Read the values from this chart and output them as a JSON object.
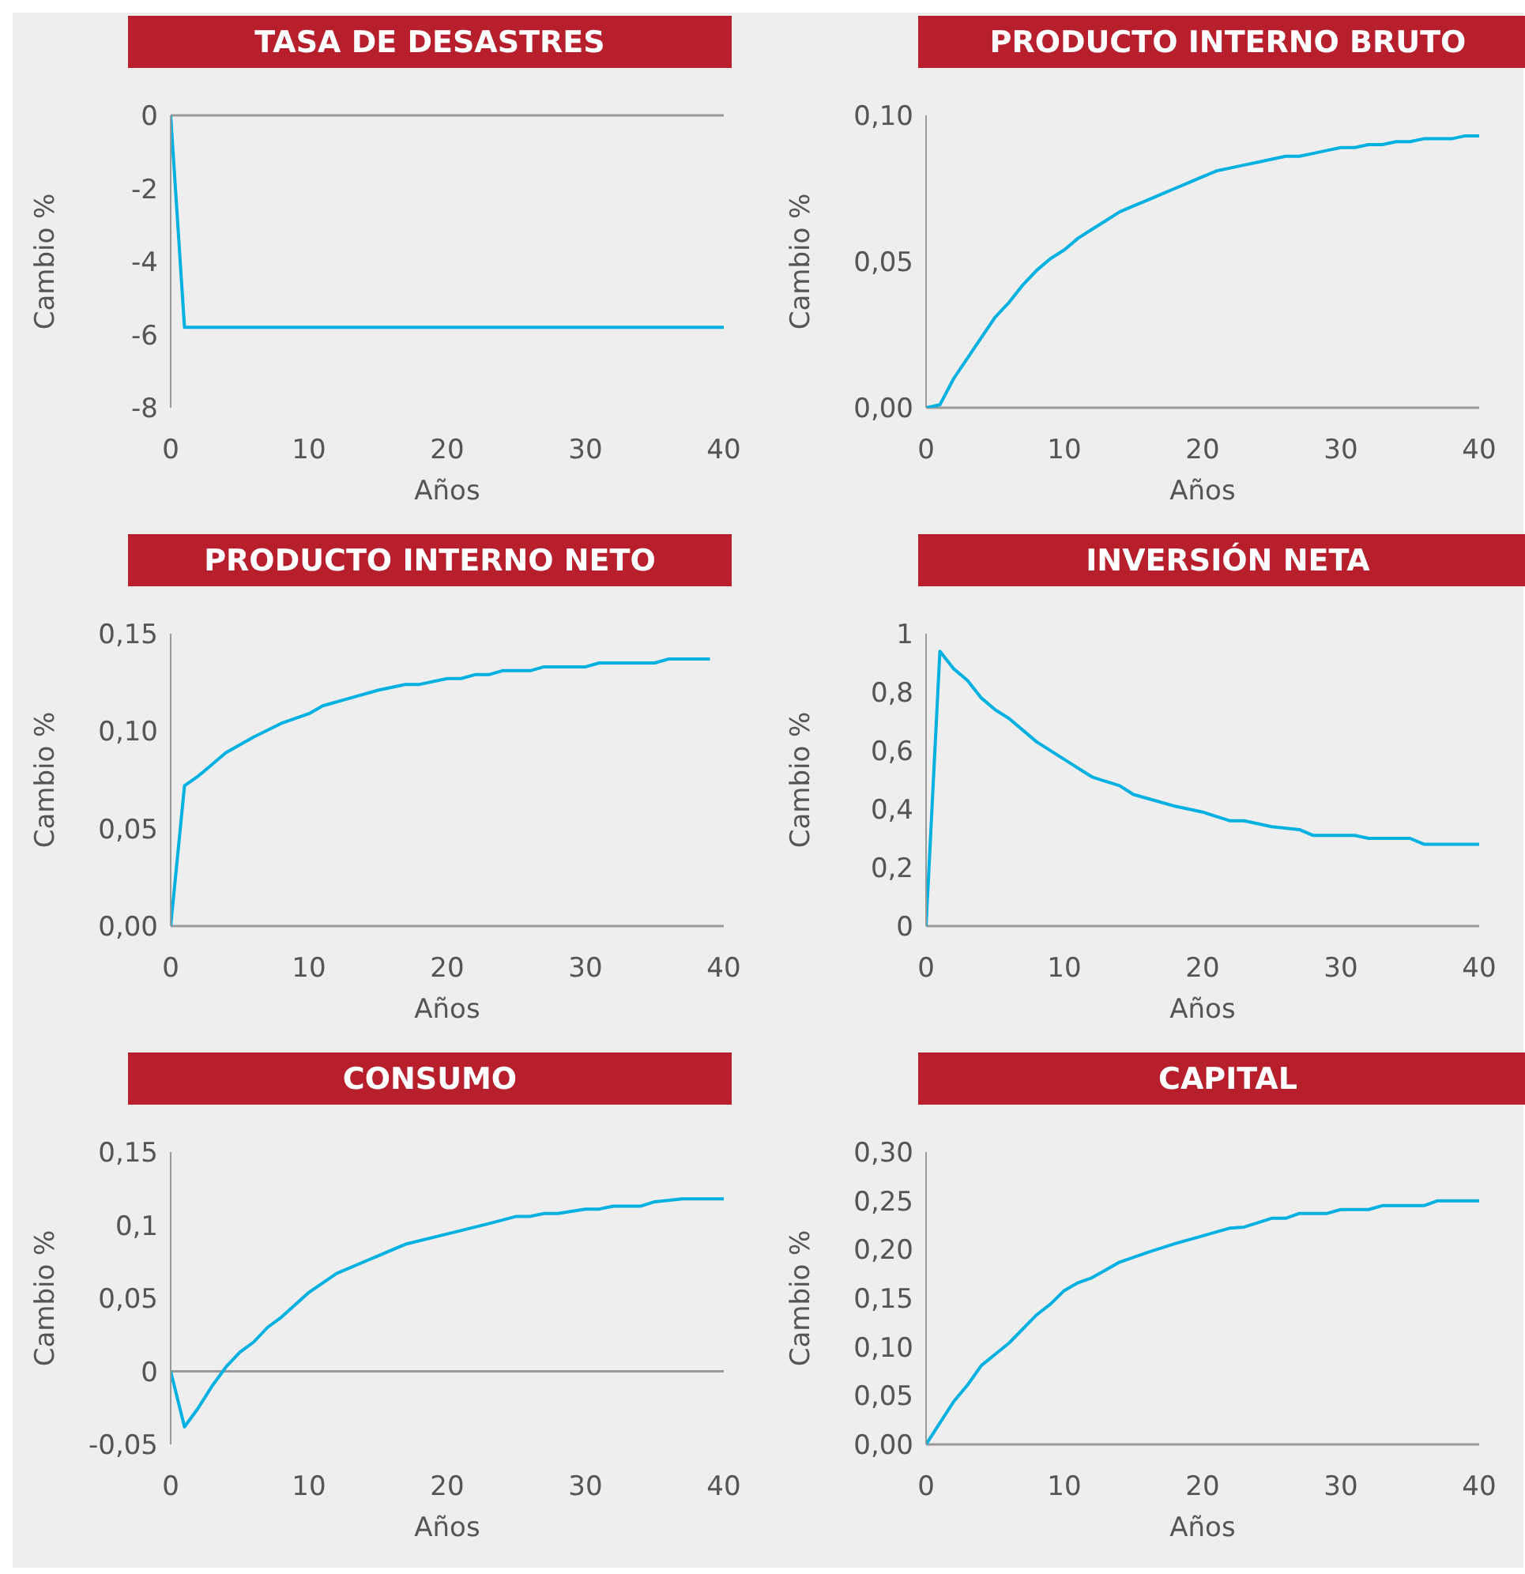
{
  "chart_data": [
    {
      "type": "line",
      "title": "TASA DE DESASTRES",
      "xlabel": "Años",
      "ylabel": "Cambio %",
      "marker": "none",
      "xlim": [
        0,
        40
      ],
      "xticks": [
        0,
        10,
        20,
        30,
        40
      ],
      "ylim": [
        -8,
        0
      ],
      "yticks": [
        -8,
        -6,
        -4,
        -2,
        0
      ],
      "x": [
        0,
        1,
        5,
        10,
        15,
        20,
        25,
        30,
        35,
        40
      ],
      "series": [
        {
          "color": "#00b0e0",
          "values": [
            0,
            -5.8,
            -5.8,
            -5.8,
            -5.8,
            -5.8,
            -5.8,
            -5.8,
            -5.8,
            -5.8
          ]
        }
      ]
    },
    {
      "type": "line",
      "title": "PRODUCTO INTERNO BRUTO",
      "xlabel": "Años",
      "ylabel": "Cambio %",
      "marker": "none",
      "xlim": [
        0,
        40
      ],
      "xticks": [
        0,
        10,
        20,
        30,
        40
      ],
      "ylim": [
        0,
        0.1
      ],
      "yticks": [
        {
          "value": 0,
          "label": "0,00"
        },
        {
          "value": 0.05,
          "label": "0,05"
        },
        {
          "value": 0.1,
          "label": "0,10"
        }
      ],
      "x": [
        0,
        1,
        2,
        3,
        4,
        5,
        6,
        7,
        8,
        9,
        10,
        11,
        12,
        13,
        14,
        15,
        16,
        17,
        18,
        19,
        20,
        21,
        22,
        23,
        24,
        25,
        26,
        27,
        28,
        29,
        30,
        31,
        32,
        33,
        34,
        35,
        36,
        37,
        38,
        39,
        40
      ],
      "series": [
        {
          "color": "#00b0e0",
          "values": [
            0,
            0.001,
            0.01,
            0.017,
            0.024,
            0.031,
            0.036,
            0.042,
            0.047,
            0.051,
            0.054,
            0.058,
            0.061,
            0.064,
            0.067,
            0.069,
            0.071,
            0.073,
            0.075,
            0.077,
            0.079,
            0.081,
            0.082,
            0.083,
            0.084,
            0.085,
            0.086,
            0.086,
            0.087,
            0.088,
            0.089,
            0.089,
            0.09,
            0.09,
            0.091,
            0.091,
            0.092,
            0.092,
            0.092,
            0.093,
            0.093
          ]
        }
      ]
    },
    {
      "type": "line",
      "title": "PRODUCTO INTERNO NETO",
      "xlabel": "Años",
      "ylabel": "Cambio %",
      "marker": "none",
      "xlim": [
        0,
        40
      ],
      "xticks": [
        0,
        10,
        20,
        30,
        40
      ],
      "ylim": [
        0,
        0.15
      ],
      "yticks": [
        {
          "value": 0,
          "label": "0,00"
        },
        {
          "value": 0.05,
          "label": "0,05"
        },
        {
          "value": 0.1,
          "label": "0,10"
        },
        {
          "value": 0.15,
          "label": "0,15"
        }
      ],
      "x": [
        0,
        1,
        2,
        4,
        6,
        8,
        10,
        11,
        13,
        15,
        17,
        18,
        20,
        21,
        22,
        23,
        24,
        26,
        27,
        30,
        31,
        35,
        36,
        39
      ],
      "series": [
        {
          "color": "#00b0e0",
          "values": [
            0,
            0.072,
            0.077,
            0.089,
            0.097,
            0.104,
            0.109,
            0.113,
            0.117,
            0.121,
            0.124,
            0.124,
            0.127,
            0.127,
            0.129,
            0.129,
            0.131,
            0.131,
            0.133,
            0.133,
            0.135,
            0.135,
            0.137,
            0.137
          ]
        }
      ]
    },
    {
      "type": "line",
      "title": "INVERSIÓN NETA",
      "xlabel": "Años",
      "ylabel": "Cambio %",
      "marker": "none",
      "xlim": [
        0,
        40
      ],
      "xticks": [
        0,
        10,
        20,
        30,
        40
      ],
      "ylim": [
        0,
        1
      ],
      "yticks": [
        0,
        {
          "value": 0.2,
          "label": "0,2"
        },
        {
          "value": 0.4,
          "label": "0,4"
        },
        {
          "value": 0.6,
          "label": "0,6"
        },
        {
          "value": 0.8,
          "label": "0,8"
        },
        1
      ],
      "x": [
        0,
        1,
        2,
        3,
        4,
        5,
        6,
        7,
        8,
        10,
        12,
        14,
        15,
        18,
        20,
        22,
        23,
        25,
        27,
        28,
        31,
        32,
        35,
        36,
        40
      ],
      "series": [
        {
          "color": "#00b0e0",
          "values": [
            0,
            0.94,
            0.88,
            0.84,
            0.78,
            0.74,
            0.71,
            0.67,
            0.63,
            0.57,
            0.51,
            0.48,
            0.45,
            0.41,
            0.39,
            0.36,
            0.36,
            0.34,
            0.33,
            0.31,
            0.31,
            0.3,
            0.3,
            0.28,
            0.28
          ]
        }
      ]
    },
    {
      "type": "line",
      "title": "CONSUMO",
      "xlabel": "Años",
      "ylabel": "Cambio %",
      "marker": "none",
      "xlim": [
        0,
        40
      ],
      "xticks": [
        0,
        10,
        20,
        30,
        40
      ],
      "ylim": [
        -0.05,
        0.15
      ],
      "yticks": [
        {
          "value": -0.05,
          "label": "-0,05"
        },
        0,
        {
          "value": 0.05,
          "label": "0,05"
        },
        {
          "value": 0.1,
          "label": "0,1"
        },
        {
          "value": 0.15,
          "label": "0,15"
        }
      ],
      "x": [
        0,
        1,
        2,
        3,
        4,
        5,
        6,
        7,
        8,
        10,
        12,
        14,
        15,
        17,
        20,
        23,
        25,
        26,
        27,
        28,
        30,
        31,
        32,
        34,
        35,
        37,
        40
      ],
      "series": [
        {
          "color": "#00b0e0",
          "values": [
            0,
            -0.038,
            -0.025,
            -0.01,
            0.003,
            0.013,
            0.02,
            0.03,
            0.037,
            0.054,
            0.067,
            0.075,
            0.079,
            0.087,
            0.094,
            0.101,
            0.106,
            0.106,
            0.108,
            0.108,
            0.111,
            0.111,
            0.113,
            0.113,
            0.116,
            0.118,
            0.118
          ]
        }
      ]
    },
    {
      "type": "line",
      "title": "CAPITAL",
      "xlabel": "Años",
      "ylabel": "Cambio %",
      "marker": "none",
      "xlim": [
        0,
        40
      ],
      "xticks": [
        0,
        10,
        20,
        30,
        40
      ],
      "ylim": [
        0,
        0.3
      ],
      "yticks": [
        {
          "value": 0,
          "label": "0,00"
        },
        {
          "value": 0.05,
          "label": "0,05"
        },
        {
          "value": 0.1,
          "label": "0,10"
        },
        {
          "value": 0.15,
          "label": "0,15"
        },
        {
          "value": 0.2,
          "label": "0,20"
        },
        {
          "value": 0.25,
          "label": "0,25"
        },
        {
          "value": 0.3,
          "label": "0,30"
        }
      ],
      "x": [
        0,
        2,
        3,
        4,
        6,
        8,
        9,
        10,
        11,
        12,
        14,
        16,
        18,
        20,
        22,
        23,
        25,
        26,
        27,
        29,
        30,
        32,
        33,
        36,
        37,
        40
      ],
      "series": [
        {
          "color": "#00b0e0",
          "values": [
            0,
            0.044,
            0.061,
            0.081,
            0.104,
            0.133,
            0.144,
            0.158,
            0.166,
            0.171,
            0.187,
            0.197,
            0.206,
            0.214,
            0.222,
            0.223,
            0.232,
            0.232,
            0.237,
            0.237,
            0.241,
            0.241,
            0.245,
            0.245,
            0.25,
            0.25
          ]
        }
      ]
    }
  ]
}
